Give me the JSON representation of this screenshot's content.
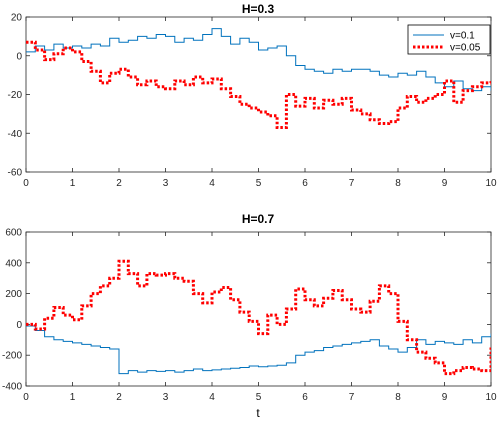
{
  "chart_data": [
    {
      "type": "line",
      "title": "H=0.3",
      "xlabel": "",
      "ylabel": "",
      "xlim": [
        0,
        10
      ],
      "ylim": [
        -60,
        20
      ],
      "xticks": [
        "0",
        "1",
        "2",
        "3",
        "4",
        "5",
        "6",
        "7",
        "8",
        "9",
        "10"
      ],
      "yticks": [
        "-60",
        "-40",
        "-20",
        "0",
        "20"
      ],
      "grid": false,
      "legend_position": "top-right",
      "series": [
        {
          "name": "v=0.1",
          "color": "#0072BD",
          "line_style": "solid",
          "x": [
            0,
            0.2,
            0.4,
            0.6,
            0.8,
            1.0,
            1.2,
            1.4,
            1.6,
            1.8,
            2.0,
            2.2,
            2.4,
            2.6,
            2.8,
            3.0,
            3.2,
            3.4,
            3.6,
            3.8,
            4.0,
            4.2,
            4.4,
            4.6,
            4.8,
            5.0,
            5.2,
            5.4,
            5.6,
            5.8,
            6.0,
            6.2,
            6.4,
            6.6,
            6.8,
            7.0,
            7.2,
            7.4,
            7.6,
            7.8,
            8.0,
            8.2,
            8.4,
            8.6,
            8.8,
            9.0,
            9.2,
            9.4,
            9.6,
            9.8,
            10.0
          ],
          "y": [
            2,
            5,
            3,
            6,
            4,
            5,
            4,
            6,
            5,
            9,
            7,
            8,
            10,
            9,
            11,
            10,
            7,
            9,
            8,
            11,
            14,
            10,
            6,
            9,
            7,
            3,
            4,
            5,
            0,
            -5,
            -7,
            -8,
            -9,
            -7,
            -8,
            -7,
            -7,
            -8,
            -10,
            -11,
            -9,
            -10,
            -8,
            -11,
            -14,
            -16,
            -13,
            -17,
            -18,
            -16,
            -18
          ]
        },
        {
          "name": "v=0.05",
          "color": "#FF0000",
          "line_style": "dotted",
          "x": [
            0,
            0.2,
            0.4,
            0.6,
            0.8,
            1.0,
            1.2,
            1.4,
            1.6,
            1.8,
            2.0,
            2.2,
            2.4,
            2.6,
            2.8,
            3.0,
            3.2,
            3.4,
            3.6,
            3.8,
            4.0,
            4.2,
            4.4,
            4.6,
            4.8,
            5.0,
            5.2,
            5.4,
            5.6,
            5.8,
            6.0,
            6.2,
            6.4,
            6.6,
            6.8,
            7.0,
            7.2,
            7.4,
            7.6,
            7.8,
            8.0,
            8.2,
            8.4,
            8.6,
            8.8,
            9.0,
            9.2,
            9.4,
            9.6,
            9.8,
            10.0
          ],
          "y": [
            7,
            3,
            -2,
            1,
            4,
            2,
            -3,
            -8,
            -14,
            -9,
            -7,
            -11,
            -15,
            -13,
            -16,
            -17,
            -13,
            -15,
            -11,
            -14,
            -12,
            -17,
            -21,
            -25,
            -27,
            -29,
            -31,
            -37,
            -20,
            -26,
            -22,
            -27,
            -23,
            -25,
            -22,
            -28,
            -30,
            -33,
            -35,
            -34,
            -27,
            -21,
            -24,
            -22,
            -20,
            -13,
            -24,
            -18,
            -16,
            -14,
            -13
          ]
        }
      ]
    },
    {
      "type": "line",
      "title": "H=0.7",
      "xlabel": "t",
      "ylabel": "",
      "xlim": [
        0,
        10
      ],
      "ylim": [
        -400,
        600
      ],
      "xticks": [
        "0",
        "1",
        "2",
        "3",
        "4",
        "5",
        "6",
        "7",
        "8",
        "9",
        "10"
      ],
      "yticks": [
        "-400",
        "-200",
        "0",
        "200",
        "400",
        "600"
      ],
      "grid": false,
      "series": [
        {
          "name": "v=0.1",
          "color": "#0072BD",
          "line_style": "solid",
          "x": [
            0,
            0.2,
            0.4,
            0.6,
            0.8,
            1.0,
            1.2,
            1.4,
            1.6,
            1.8,
            2.0,
            2.2,
            2.4,
            2.6,
            2.8,
            3.0,
            3.2,
            3.4,
            3.6,
            3.8,
            4.0,
            4.2,
            4.4,
            4.6,
            4.8,
            5.0,
            5.2,
            5.4,
            5.6,
            5.8,
            6.0,
            6.2,
            6.4,
            6.6,
            6.8,
            7.0,
            7.2,
            7.4,
            7.6,
            7.8,
            8.0,
            8.2,
            8.4,
            8.6,
            8.8,
            9.0,
            9.2,
            9.4,
            9.6,
            9.8,
            10.0
          ],
          "y": [
            -10,
            -40,
            -80,
            -100,
            -110,
            -120,
            -130,
            -140,
            -150,
            -160,
            -320,
            -300,
            -310,
            -300,
            -305,
            -300,
            -310,
            -300,
            -290,
            -300,
            -295,
            -290,
            -285,
            -280,
            -270,
            -275,
            -270,
            -265,
            -250,
            -200,
            -180,
            -170,
            -150,
            -140,
            -130,
            -120,
            -110,
            -100,
            -140,
            -160,
            -180,
            -150,
            -100,
            -130,
            -110,
            -120,
            -130,
            -100,
            -120,
            -80,
            -60
          ]
        },
        {
          "name": "v=0.05",
          "color": "#FF0000",
          "line_style": "dotted",
          "x": [
            0,
            0.2,
            0.4,
            0.6,
            0.8,
            1.0,
            1.2,
            1.4,
            1.6,
            1.8,
            2.0,
            2.2,
            2.4,
            2.6,
            2.8,
            3.0,
            3.2,
            3.4,
            3.6,
            3.8,
            4.0,
            4.2,
            4.4,
            4.6,
            4.8,
            5.0,
            5.2,
            5.4,
            5.6,
            5.8,
            6.0,
            6.2,
            6.4,
            6.6,
            6.8,
            7.0,
            7.2,
            7.4,
            7.6,
            7.8,
            8.0,
            8.2,
            8.4,
            8.6,
            8.8,
            9.0,
            9.2,
            9.4,
            9.6,
            9.8,
            10.0
          ],
          "y": [
            0,
            -30,
            40,
            110,
            60,
            30,
            120,
            200,
            250,
            300,
            410,
            330,
            250,
            330,
            320,
            330,
            300,
            280,
            200,
            140,
            210,
            240,
            160,
            80,
            20,
            -60,
            60,
            0,
            100,
            230,
            160,
            120,
            170,
            220,
            160,
            100,
            80,
            150,
            250,
            200,
            20,
            -100,
            -180,
            -220,
            -250,
            -320,
            -300,
            -280,
            -290,
            -300,
            -150
          ]
        }
      ]
    }
  ]
}
